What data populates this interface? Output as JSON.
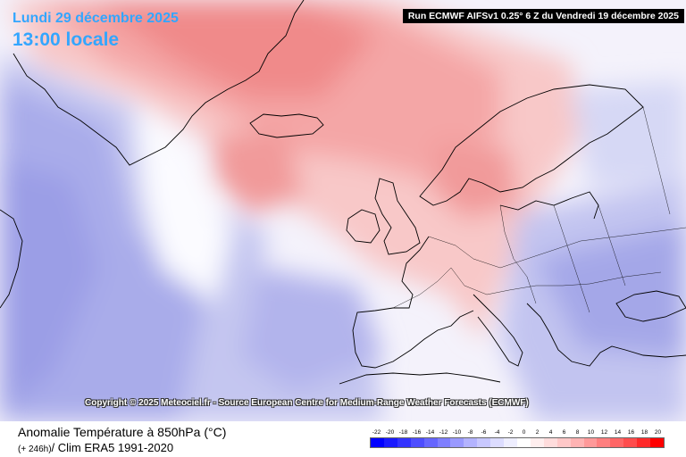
{
  "header": {
    "date": "Lundi 29 décembre 2025",
    "time": "13:00 locale",
    "run": "Run ECMWF AIFSv1 0.25° 6 Z du Vendredi 19 décembre 2025"
  },
  "map": {
    "copyright": "Copyright © 2025 Meteociel.fr - Source European Centre for Medium-Range Weather Forecasts (ECMWF)"
  },
  "footer": {
    "parameter": "Anomalie Température à 850hPa (°C)",
    "lead": "(+ 246h)",
    "clim": "/ Clim ERA5 1991-2020"
  },
  "legend": {
    "labels": [
      "-22",
      "-20",
      "-18",
      "-16",
      "-14",
      "-12",
      "-10",
      "-8",
      "-6",
      "-4",
      "-2",
      "0",
      "2",
      "4",
      "6",
      "8",
      "10",
      "12",
      "14",
      "16",
      "18",
      "20"
    ],
    "colors": [
      "#0000ff",
      "#1a1aff",
      "#3333ff",
      "#4d4dff",
      "#6666ff",
      "#7f7fff",
      "#9999ff",
      "#b3b3ff",
      "#c8c8ff",
      "#dcdcff",
      "#eeeeff",
      "#ffffff",
      "#ffeeee",
      "#ffdcdc",
      "#ffc8c8",
      "#ffb3b3",
      "#ff9999",
      "#ff7f7f",
      "#ff6666",
      "#ff4d4d",
      "#ff2a2a",
      "#ff0000"
    ]
  }
}
